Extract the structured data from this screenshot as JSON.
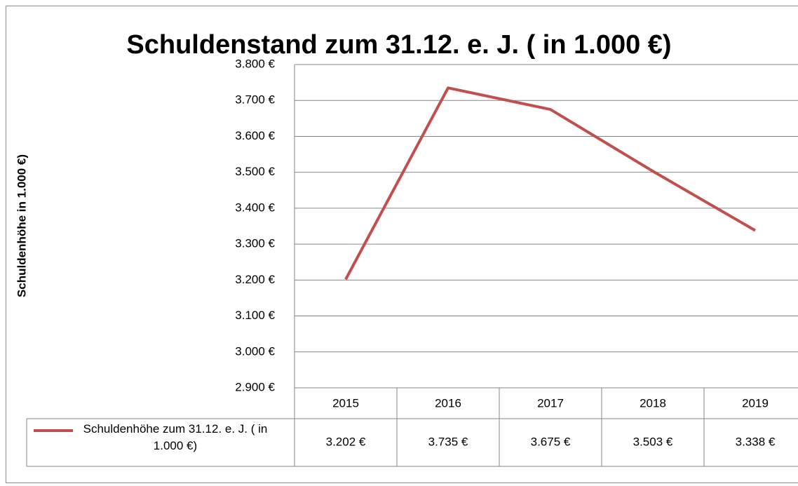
{
  "chart_data": {
    "type": "line",
    "title": "Schuldenstand zum 31.12. e. J. ( in 1.000 €)",
    "y_label": "Schuldenhöhe in 1.000 €)",
    "categories": [
      "2015",
      "2016",
      "2017",
      "2018",
      "2019"
    ],
    "series": [
      {
        "name": "Schuldenhöhe zum 31.12. e. J. ( in 1.000 €)",
        "color": "#c0504d",
        "values": [
          3202,
          3735,
          3675,
          3503,
          3338
        ],
        "value_labels": [
          "3.202 €",
          "3.735 €",
          "3.675 €",
          "3.503 €",
          "3.338 €"
        ]
      }
    ],
    "ylim": [
      2900,
      3800
    ],
    "yticks": [
      {
        "value": 2900,
        "label": "2.900 €"
      },
      {
        "value": 3000,
        "label": "3.000 €"
      },
      {
        "value": 3100,
        "label": "3.100 €"
      },
      {
        "value": 3200,
        "label": "3.200 €"
      },
      {
        "value": 3300,
        "label": "3.300 €"
      },
      {
        "value": 3400,
        "label": "3.400 €"
      },
      {
        "value": 3500,
        "label": "3.500 €"
      },
      {
        "value": 3600,
        "label": "3.600 €"
      },
      {
        "value": 3700,
        "label": "3.700 €"
      },
      {
        "value": 3800,
        "label": "3.800 €"
      }
    ],
    "grid": true
  }
}
